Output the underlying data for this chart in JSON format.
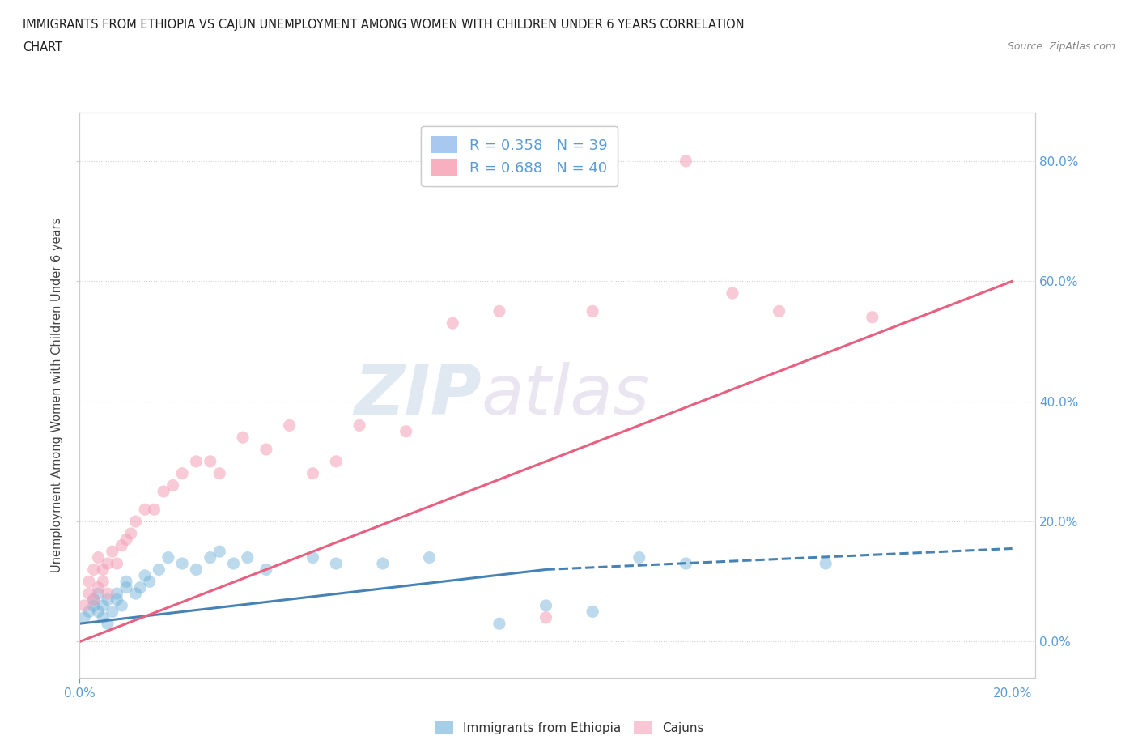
{
  "title_line1": "IMMIGRANTS FROM ETHIOPIA VS CAJUN UNEMPLOYMENT AMONG WOMEN WITH CHILDREN UNDER 6 YEARS CORRELATION",
  "title_line2": "CHART",
  "source": "Source: ZipAtlas.com",
  "ylabel_label": "Unemployment Among Women with Children Under 6 years",
  "legend_entries": [
    {
      "label": "R = 0.358   N = 39",
      "facecolor": "#a8c8f0"
    },
    {
      "label": "R = 0.688   N = 40",
      "facecolor": "#f8b0c0"
    }
  ],
  "watermark_zip": "ZIP",
  "watermark_atlas": "atlas",
  "blue_color": "#6baed6",
  "pink_color": "#f4a0b8",
  "blue_line_color": "#4682b4",
  "pink_line_color": "#e86080",
  "scatter_blue": [
    [
      0.001,
      0.04
    ],
    [
      0.002,
      0.05
    ],
    [
      0.003,
      0.06
    ],
    [
      0.003,
      0.07
    ],
    [
      0.004,
      0.05
    ],
    [
      0.004,
      0.08
    ],
    [
      0.005,
      0.06
    ],
    [
      0.005,
      0.04
    ],
    [
      0.006,
      0.07
    ],
    [
      0.006,
      0.03
    ],
    [
      0.007,
      0.05
    ],
    [
      0.008,
      0.07
    ],
    [
      0.008,
      0.08
    ],
    [
      0.009,
      0.06
    ],
    [
      0.01,
      0.09
    ],
    [
      0.01,
      0.1
    ],
    [
      0.012,
      0.08
    ],
    [
      0.013,
      0.09
    ],
    [
      0.014,
      0.11
    ],
    [
      0.015,
      0.1
    ],
    [
      0.017,
      0.12
    ],
    [
      0.019,
      0.14
    ],
    [
      0.022,
      0.13
    ],
    [
      0.025,
      0.12
    ],
    [
      0.028,
      0.14
    ],
    [
      0.03,
      0.15
    ],
    [
      0.033,
      0.13
    ],
    [
      0.036,
      0.14
    ],
    [
      0.04,
      0.12
    ],
    [
      0.05,
      0.14
    ],
    [
      0.055,
      0.13
    ],
    [
      0.065,
      0.13
    ],
    [
      0.075,
      0.14
    ],
    [
      0.09,
      0.03
    ],
    [
      0.1,
      0.06
    ],
    [
      0.11,
      0.05
    ],
    [
      0.12,
      0.14
    ],
    [
      0.13,
      0.13
    ],
    [
      0.16,
      0.13
    ]
  ],
  "scatter_pink": [
    [
      0.001,
      0.06
    ],
    [
      0.002,
      0.08
    ],
    [
      0.002,
      0.1
    ],
    [
      0.003,
      0.07
    ],
    [
      0.003,
      0.12
    ],
    [
      0.004,
      0.09
    ],
    [
      0.004,
      0.14
    ],
    [
      0.005,
      0.1
    ],
    [
      0.005,
      0.12
    ],
    [
      0.006,
      0.08
    ],
    [
      0.006,
      0.13
    ],
    [
      0.007,
      0.15
    ],
    [
      0.008,
      0.13
    ],
    [
      0.009,
      0.16
    ],
    [
      0.01,
      0.17
    ],
    [
      0.011,
      0.18
    ],
    [
      0.012,
      0.2
    ],
    [
      0.014,
      0.22
    ],
    [
      0.016,
      0.22
    ],
    [
      0.018,
      0.25
    ],
    [
      0.02,
      0.26
    ],
    [
      0.022,
      0.28
    ],
    [
      0.025,
      0.3
    ],
    [
      0.028,
      0.3
    ],
    [
      0.03,
      0.28
    ],
    [
      0.035,
      0.34
    ],
    [
      0.04,
      0.32
    ],
    [
      0.045,
      0.36
    ],
    [
      0.05,
      0.28
    ],
    [
      0.055,
      0.3
    ],
    [
      0.06,
      0.36
    ],
    [
      0.07,
      0.35
    ],
    [
      0.08,
      0.53
    ],
    [
      0.09,
      0.55
    ],
    [
      0.1,
      0.04
    ],
    [
      0.11,
      0.55
    ],
    [
      0.14,
      0.58
    ],
    [
      0.15,
      0.55
    ],
    [
      0.17,
      0.54
    ],
    [
      0.13,
      0.8
    ]
  ],
  "blue_line_solid": [
    [
      0.0,
      0.03
    ],
    [
      0.1,
      0.12
    ]
  ],
  "blue_line_dashed": [
    [
      0.1,
      0.12
    ],
    [
      0.2,
      0.155
    ]
  ],
  "pink_line": [
    [
      0.0,
      0.0
    ],
    [
      0.2,
      0.6
    ]
  ],
  "xlim": [
    0.0,
    0.205
  ],
  "ylim": [
    -0.06,
    0.88
  ],
  "yticks": [
    0.0,
    0.2,
    0.4,
    0.6,
    0.8
  ],
  "xticks": [
    0.0,
    0.2
  ],
  "grid_color": "#cccccc",
  "tick_color": "#5b9bd5",
  "background_color": "#ffffff"
}
